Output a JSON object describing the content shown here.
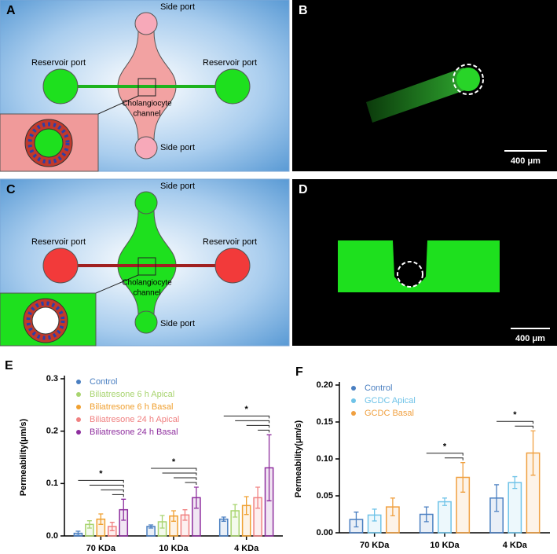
{
  "panels": [
    {
      "label": "A",
      "side_port_top": "Side port",
      "side_port_bottom": "Side port",
      "reservoir_left": "Reservoir port",
      "reservoir_right": "Reservoir port",
      "channel": [
        "Cholangiocyte",
        "channel"
      ]
    },
    {
      "label": "B",
      "scale_bar": "400 μm"
    },
    {
      "label": "C",
      "side_port_top": "Side port",
      "side_port_bottom": "Side port",
      "reservoir_left": "Reservoir port",
      "reservoir_right": "Reservoir port",
      "channel": [
        "Cholangiocyte",
        "channel"
      ]
    },
    {
      "label": "D",
      "scale_bar": "400 μm"
    }
  ],
  "chart_data": [
    {
      "type": "bar",
      "label": "E",
      "y_label": "Permeability(μm/s)",
      "categories": [
        "70 KDa",
        "10 KDa",
        "4 KDa"
      ],
      "series": [
        {
          "name": "Control",
          "color": "#4a7fc1",
          "values": [
            0.005,
            0.018,
            0.032
          ],
          "errors": [
            0.004,
            0.003,
            0.004
          ]
        },
        {
          "name": "Biliatresone 6 h Apical",
          "color": "#a8d46f",
          "values": [
            0.022,
            0.027,
            0.048
          ],
          "errors": [
            0.007,
            0.012,
            0.012
          ]
        },
        {
          "name": "Biliatresone 6 h Basal",
          "color": "#f0a030",
          "values": [
            0.032,
            0.038,
            0.058
          ],
          "errors": [
            0.01,
            0.01,
            0.017
          ]
        },
        {
          "name": "Biliatresone 24 h Apical",
          "color": "#f08080",
          "values": [
            0.018,
            0.04,
            0.073
          ],
          "errors": [
            0.008,
            0.01,
            0.02
          ]
        },
        {
          "name": "Biliatresone 24 h Basal",
          "color": "#8e2e9e",
          "values": [
            0.05,
            0.073,
            0.13
          ],
          "errors": [
            0.02,
            0.02,
            0.063
          ]
        }
      ],
      "significance": [
        "*",
        "*",
        "*"
      ],
      "ylim": [
        0,
        0.3
      ],
      "yticks": [
        {
          "value": 0,
          "label": "0.0"
        },
        0.1,
        0.2,
        0.3
      ],
      "legend": "upper left"
    },
    {
      "type": "bar",
      "label": "F",
      "y_label": "Permeability(μm/s)",
      "categories": [
        "70 KDa",
        "10 KDa",
        "4 KDa"
      ],
      "series": [
        {
          "name": "Control",
          "color": "#4a7fc1",
          "values": [
            0.018,
            0.025,
            0.047
          ],
          "errors": [
            0.01,
            0.01,
            0.018
          ]
        },
        {
          "name": "GCDC Apical",
          "color": "#6fc3e8",
          "values": [
            0.024,
            0.042,
            0.068
          ],
          "errors": [
            0.008,
            0.005,
            0.008
          ]
        },
        {
          "name": "GCDC Basal",
          "color": "#f0a040",
          "values": [
            0.035,
            0.075,
            0.108
          ],
          "errors": [
            0.012,
            0.02,
            0.03
          ]
        }
      ],
      "significance": [
        null,
        "*",
        "*"
      ],
      "ylim": [
        0,
        0.2
      ],
      "yticks": [
        {
          "value": 0,
          "label": "0.00"
        },
        {
          "value": 0.05,
          "label": "0.05"
        },
        {
          "value": 0.1,
          "label": "0.10"
        },
        {
          "value": 0.15,
          "label": "0.15"
        },
        {
          "value": 0.2,
          "label": "0.20"
        }
      ],
      "legend": "upper left"
    }
  ]
}
